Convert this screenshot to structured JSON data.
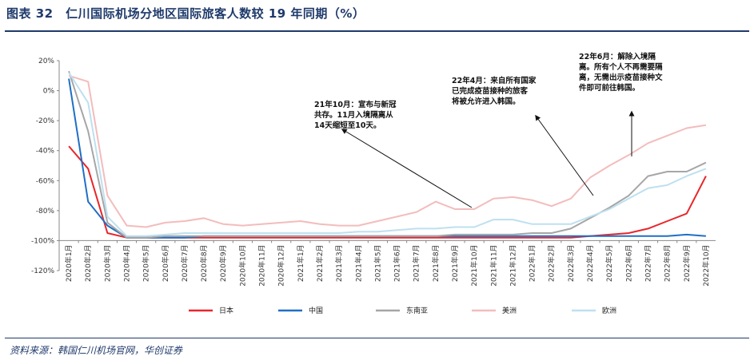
{
  "title": "图表 32　仁川国际机场分地区国际旅客人数较 19 年同期（%）",
  "source": "资料来源：韩国仁川机场官网，华创证券",
  "chart_data": {
    "type": "line",
    "x": [
      "2020年1月",
      "2020年2月",
      "2020年3月",
      "2020年4月",
      "2020年5月",
      "2020年6月",
      "2020年7月",
      "2020年8月",
      "2020年9月",
      "2020年10月",
      "2020年11月",
      "2020年12月",
      "2021年1月",
      "2021年2月",
      "2021年3月",
      "2021年4月",
      "2021年5月",
      "2021年6月",
      "2021年7月",
      "2021年8月",
      "2021年9月",
      "2021年10月",
      "2021年11月",
      "2021年12月",
      "2022年1月",
      "2022年2月",
      "2022年3月",
      "2022年4月",
      "2022年5月",
      "2022年6月",
      "2022年7月",
      "2022年8月",
      "2022年9月",
      "2022年10月"
    ],
    "ylim": [
      -120,
      20
    ],
    "yticks": [
      "20%",
      "0%",
      "-20%",
      "-40%",
      "-60%",
      "-80%",
      "-100%",
      "-120%"
    ],
    "legend_position": "bottom",
    "series": [
      {
        "name": "日本",
        "color": "#e8262a",
        "values": [
          -37,
          -52,
          -95,
          -98,
          -98,
          -98,
          -98,
          -98,
          -98,
          -98,
          -98,
          -98,
          -98,
          -98,
          -98,
          -98,
          -98,
          -98,
          -98,
          -98,
          -98,
          -98,
          -98,
          -98,
          -98,
          -98,
          -98,
          -97,
          -96,
          -95,
          -92,
          -87,
          -82,
          -57
        ]
      },
      {
        "name": "中国",
        "color": "#1f6fc6",
        "values": [
          8,
          -74,
          -90,
          -98,
          -98,
          -98,
          -98,
          -97,
          -97,
          -97,
          -97,
          -97,
          -97,
          -97,
          -97,
          -97,
          -97,
          -97,
          -97,
          -97,
          -97,
          -97,
          -97,
          -97,
          -97,
          -97,
          -97,
          -97,
          -97,
          -97,
          -97,
          -97,
          -96,
          -97
        ]
      },
      {
        "name": "东南亚",
        "color": "#a6a6a6",
        "values": [
          13,
          -27,
          -88,
          -98,
          -98,
          -97,
          -97,
          -97,
          -97,
          -97,
          -97,
          -97,
          -97,
          -97,
          -97,
          -97,
          -97,
          -97,
          -97,
          -97,
          -96,
          -96,
          -96,
          -96,
          -95,
          -95,
          -92,
          -85,
          -78,
          -70,
          -57,
          -54,
          -54,
          -48
        ]
      },
      {
        "name": "美洲",
        "color": "#f3bcbc",
        "values": [
          10,
          6,
          -70,
          -90,
          -91,
          -88,
          -87,
          -85,
          -89,
          -90,
          -89,
          -88,
          -87,
          -89,
          -90,
          -90,
          -87,
          -84,
          -81,
          -74,
          -79,
          -79,
          -72,
          -71,
          -73,
          -77,
          -72,
          -58,
          -50,
          -43,
          -35,
          -30,
          -25,
          -23
        ]
      },
      {
        "name": "欧洲",
        "color": "#bde0f0",
        "values": [
          12,
          -8,
          -84,
          -97,
          -97,
          -96,
          -95,
          -95,
          -95,
          -95,
          -95,
          -95,
          -95,
          -95,
          -95,
          -94,
          -94,
          -93,
          -92,
          -92,
          -91,
          -91,
          -86,
          -86,
          -89,
          -89,
          -89,
          -84,
          -79,
          -72,
          -65,
          -63,
          -57,
          -52
        ]
      }
    ],
    "annotations": [
      {
        "lines": [
          "21年10月：宣布与新冠",
          "共存。11月入境隔离从",
          "14天缩短至10天。"
        ],
        "target": "2021年10月"
      },
      {
        "lines": [
          "22年4月：来自所有国家",
          "已完成疫苗接种的旅客",
          "将被允许进入韩国。"
        ],
        "target": "2022年3月"
      },
      {
        "lines": [
          "22年6月：解除入境隔",
          "离。所有个人不再需要隔",
          "离，无需出示疫苗接种文",
          "件即可前往韩国。"
        ],
        "target": "2022年6月"
      }
    ]
  }
}
